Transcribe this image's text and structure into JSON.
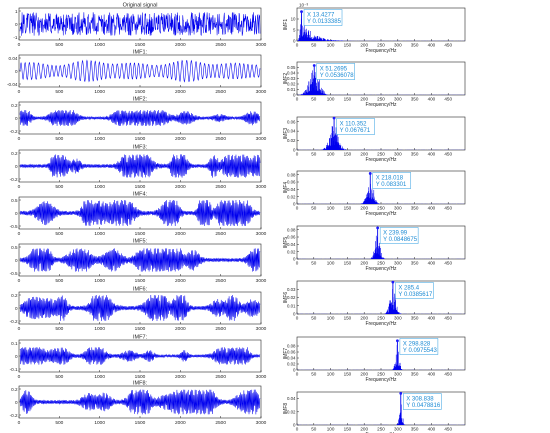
{
  "colors": {
    "signal": "#0000ee",
    "axis": "#262626",
    "dtBorder": "#2f9de0",
    "dtText": "#1a8ad4",
    "dtBg": "#ffffff",
    "marker": "#1a1aff"
  },
  "chart_data": [
    {
      "id": "ts0",
      "type": "line",
      "title": "Original signal",
      "xlim": [
        0,
        3000
      ],
      "ylim": [
        -1,
        1
      ],
      "xticks": [
        "0",
        "500",
        "1000",
        "1500",
        "2000",
        "2500",
        "3000"
      ],
      "yticks": [
        "-1",
        "0",
        "1"
      ],
      "synthetic": {
        "kind": "noise",
        "amp": 0.9
      }
    },
    {
      "id": "ts1",
      "type": "line",
      "title": "IMF1:",
      "xlim": [
        0,
        3000
      ],
      "ylim": [
        -0.04,
        0.04
      ],
      "xticks": [
        "0",
        "500",
        "1000",
        "1500",
        "2000",
        "2500",
        "3000"
      ],
      "yticks": [
        "-0.04",
        "0",
        "0.04"
      ],
      "synthetic": {
        "kind": "wave",
        "amp": 0.75,
        "cycles": 55
      }
    },
    {
      "id": "ts2",
      "type": "line",
      "title": "IMF2:",
      "xlim": [
        0,
        3000
      ],
      "ylim": [
        -0.2,
        0.2
      ],
      "xticks": [
        "0",
        "500",
        "1000",
        "1500",
        "2000",
        "2500",
        "3000"
      ],
      "yticks": [
        "-0.2",
        "0",
        "0.2"
      ],
      "synthetic": {
        "kind": "bursty",
        "amp": 0.55
      }
    },
    {
      "id": "ts3",
      "type": "line",
      "title": "IMF3:",
      "xlim": [
        0,
        3000
      ],
      "ylim": [
        -0.2,
        0.2
      ],
      "xticks": [
        "0",
        "500",
        "1000",
        "1500",
        "2000",
        "2500",
        "3000"
      ],
      "yticks": [
        "-0.2",
        "0",
        "0.2"
      ],
      "synthetic": {
        "kind": "bursty",
        "amp": 0.8
      }
    },
    {
      "id": "ts4",
      "type": "line",
      "title": "IMF4:",
      "xlim": [
        0,
        3000
      ],
      "ylim": [
        -0.5,
        0.5
      ],
      "xticks": [
        "0",
        "500",
        "1000",
        "1500",
        "2000",
        "2500",
        "3000"
      ],
      "yticks": [
        "-0.5",
        "0",
        "0.5"
      ],
      "synthetic": {
        "kind": "bursty",
        "amp": 0.9
      }
    },
    {
      "id": "ts5",
      "type": "line",
      "title": "IMF5:",
      "xlim": [
        0,
        3000
      ],
      "ylim": [
        -0.5,
        0.5
      ],
      "xticks": [
        "0",
        "500",
        "1000",
        "1500",
        "2000",
        "2500",
        "3000"
      ],
      "yticks": [
        "-0.5",
        "0",
        "0.5"
      ],
      "synthetic": {
        "kind": "bursty",
        "amp": 0.8
      }
    },
    {
      "id": "ts6",
      "type": "line",
      "title": "IMF6:",
      "xlim": [
        0,
        3000
      ],
      "ylim": [
        -0.2,
        0.2
      ],
      "xticks": [
        "0",
        "500",
        "1000",
        "1500",
        "2000",
        "2500",
        "3000"
      ],
      "yticks": [
        "-0.2",
        "0",
        "0.2"
      ],
      "synthetic": {
        "kind": "bursty",
        "amp": 0.9
      }
    },
    {
      "id": "ts7",
      "type": "line",
      "title": "IMF7:",
      "xlim": [
        0,
        3000
      ],
      "ylim": [
        -0.1,
        0.1
      ],
      "xticks": [
        "0",
        "500",
        "1000",
        "1500",
        "2000",
        "2500",
        "3000"
      ],
      "yticks": [
        "-0.1",
        "0",
        "0.1"
      ],
      "synthetic": {
        "kind": "bursty",
        "amp": 0.6
      }
    },
    {
      "id": "ts8",
      "type": "line",
      "title": "IMF8:",
      "xlim": [
        0,
        3000
      ],
      "ylim": [
        -0.2,
        0.2
      ],
      "xticks": [
        "0",
        "500",
        "1000",
        "1500",
        "2000",
        "2500",
        "3000"
      ],
      "yticks": [
        "-0.2",
        "0",
        "0.2"
      ],
      "synthetic": {
        "kind": "bursty",
        "amp": 0.85
      }
    },
    {
      "id": "sp1",
      "type": "bar",
      "ylabel": "IMF1",
      "xlabel": "Frequency/Hz",
      "multiplier": "10⁻³",
      "xlim": [
        0,
        500
      ],
      "ylim": [
        0,
        15
      ],
      "xticks": [
        "0",
        "50",
        "100",
        "150",
        "200",
        "250",
        "300",
        "350",
        "400",
        "450"
      ],
      "yticks": [
        "0",
        "5",
        "10"
      ],
      "peak": {
        "x": 13.4277,
        "y": 0.0133385,
        "display_y": 13.3385
      },
      "tip": {
        "x_label": "X 13.4277",
        "y_label": "Y 0.0133385"
      },
      "spread": 30,
      "skew": "right"
    },
    {
      "id": "sp2",
      "type": "bar",
      "ylabel": "IMF2",
      "xlabel": "Frequency/Hz",
      "xlim": [
        0,
        500
      ],
      "ylim": [
        0,
        0.06
      ],
      "xticks": [
        "0",
        "50",
        "100",
        "150",
        "200",
        "250",
        "300",
        "350",
        "400",
        "450"
      ],
      "yticks": [
        "0",
        "0.01",
        "0.02",
        "0.03",
        "0.04",
        "0.05"
      ],
      "peak": {
        "x": 51.2695,
        "y": 0.0536078
      },
      "tip": {
        "x_label": "X 51.2695",
        "y_label": "Y 0.0536078"
      },
      "spread": 35
    },
    {
      "id": "sp3",
      "type": "bar",
      "ylabel": "IMF3",
      "xlabel": "Frequency/Hz",
      "xlim": [
        0,
        500
      ],
      "ylim": [
        0,
        0.07
      ],
      "xticks": [
        "0",
        "50",
        "100",
        "150",
        "200",
        "250",
        "300",
        "350",
        "400",
        "450"
      ],
      "yticks": [
        "0",
        "0.02",
        "0.04",
        "0.06"
      ],
      "peak": {
        "x": 110.352,
        "y": 0.067671
      },
      "tip": {
        "x_label": "X 110.352",
        "y_label": "Y 0.067671"
      },
      "spread": 30
    },
    {
      "id": "sp4",
      "type": "bar",
      "ylabel": "IMF4",
      "xlabel": "Frequency/Hz",
      "xlim": [
        0,
        500
      ],
      "ylim": [
        0,
        0.09
      ],
      "xticks": [
        "0",
        "50",
        "100",
        "150",
        "200",
        "250",
        "300",
        "350",
        "400",
        "450"
      ],
      "yticks": [
        "0",
        "0.02",
        "0.04",
        "0.06",
        "0.08"
      ],
      "peak": {
        "x": 218.018,
        "y": 0.083301
      },
      "tip": {
        "x_label": "X 218.018",
        "y_label": "Y 0.083301"
      },
      "spread": 22
    },
    {
      "id": "sp5",
      "type": "bar",
      "ylabel": "IMF5",
      "xlabel": "Frequency/Hz",
      "xlim": [
        0,
        500
      ],
      "ylim": [
        0,
        0.09
      ],
      "xticks": [
        "0",
        "50",
        "100",
        "150",
        "200",
        "250",
        "300",
        "350",
        "400",
        "450"
      ],
      "yticks": [
        "0",
        "0.02",
        "0.04",
        "0.06",
        "0.08"
      ],
      "peak": {
        "x": 239.99,
        "y": 0.0848675
      },
      "tip": {
        "x_label": "X 239.99",
        "y_label": "Y 0.0848675"
      },
      "spread": 18
    },
    {
      "id": "sp6",
      "type": "bar",
      "ylabel": "IMF6",
      "xlabel": "Frequency/Hz",
      "xlim": [
        0,
        500
      ],
      "ylim": [
        0,
        0.04
      ],
      "xticks": [
        "0",
        "50",
        "100",
        "150",
        "200",
        "250",
        "300",
        "350",
        "400",
        "450"
      ],
      "yticks": [
        "0",
        "0.01",
        "0.02",
        "0.03"
      ],
      "peak": {
        "x": 285.4,
        "y": 0.0385617
      },
      "tip": {
        "x_label": "X 285.4",
        "y_label": "Y 0.0385617"
      },
      "spread": 20
    },
    {
      "id": "sp7",
      "type": "bar",
      "ylabel": "IMF7",
      "xlabel": "Frequency/Hz",
      "xlim": [
        0,
        500
      ],
      "ylim": [
        0,
        0.11
      ],
      "xticks": [
        "0",
        "50",
        "100",
        "150",
        "200",
        "250",
        "300",
        "350",
        "400",
        "450"
      ],
      "yticks": [
        "0",
        "0.02",
        "0.04",
        "0.06",
        "0.08"
      ],
      "peak": {
        "x": 298.828,
        "y": 0.0975543
      },
      "tip": {
        "x_label": "X 298.828",
        "y_label": "Y 0.0975543"
      },
      "spread": 12
    },
    {
      "id": "sp8",
      "type": "bar",
      "ylabel": "IMF8",
      "xlabel": "Frequency/Hz",
      "xlim": [
        0,
        500
      ],
      "ylim": [
        0,
        0.05
      ],
      "xticks": [
        "0",
        "50",
        "100",
        "150",
        "200",
        "250",
        "300",
        "350",
        "400",
        "450"
      ],
      "yticks": [
        "0",
        "0.02",
        "0.04"
      ],
      "peak": {
        "x": 308.838,
        "y": 0.0478816
      },
      "tip": {
        "x_label": "X 308.838",
        "y_label": "Y 0.0478816"
      },
      "spread": 10
    }
  ]
}
